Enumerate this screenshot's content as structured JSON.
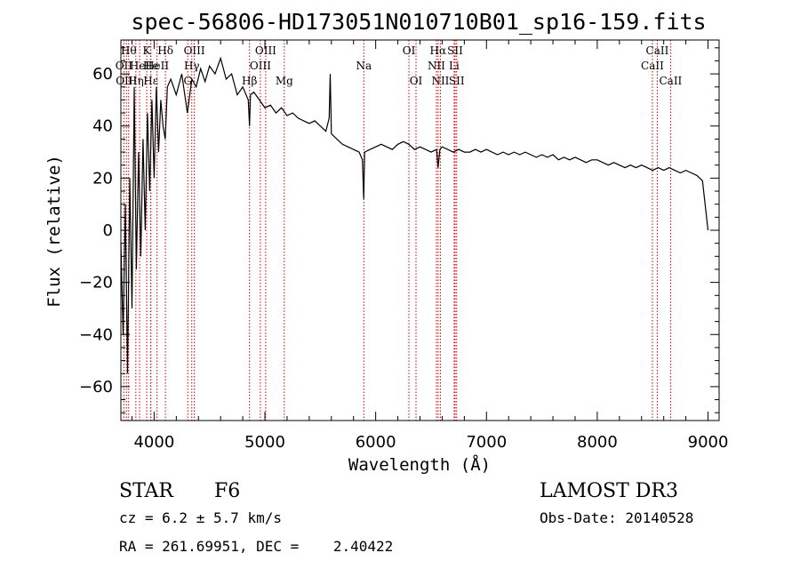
{
  "chart_data": {
    "type": "line",
    "title": "spec-56806-HD173051N010710B01_sp16-159.fits",
    "xlabel": "Wavelength (Å)",
    "ylabel": "Flux (relative)",
    "xlim": [
      3700,
      9100
    ],
    "ylim": [
      -73,
      73
    ],
    "x_ticks": [
      4000,
      5000,
      6000,
      7000,
      8000,
      9000
    ],
    "y_ticks": [
      -60,
      -40,
      -20,
      0,
      20,
      40,
      60
    ],
    "x_tick_labels": [
      "4000",
      "5000",
      "6000",
      "7000",
      "8000",
      "9000"
    ],
    "y_tick_labels": [
      "−60",
      "−40",
      "−20",
      "0",
      "20",
      "40",
      "60"
    ],
    "series": [
      {
        "name": "flux",
        "x": [
          3700,
          3720,
          3740,
          3760,
          3780,
          3800,
          3820,
          3840,
          3860,
          3880,
          3900,
          3920,
          3940,
          3960,
          3980,
          4000,
          4020,
          4040,
          4060,
          4080,
          4100,
          4120,
          4150,
          4200,
          4250,
          4300,
          4340,
          4380,
          4420,
          4460,
          4500,
          4550,
          4600,
          4650,
          4700,
          4750,
          4800,
          4850,
          4861,
          4870,
          4900,
          4950,
          5000,
          5050,
          5100,
          5150,
          5200,
          5250,
          5300,
          5350,
          5400,
          5450,
          5500,
          5550,
          5580,
          5590,
          5600,
          5650,
          5700,
          5750,
          5800,
          5850,
          5880,
          5892,
          5900,
          5950,
          6000,
          6050,
          6100,
          6150,
          6200,
          6250,
          6300,
          6350,
          6400,
          6450,
          6500,
          6550,
          6563,
          6580,
          6600,
          6650,
          6700,
          6750,
          6800,
          6850,
          6900,
          6950,
          7000,
          7050,
          7100,
          7150,
          7200,
          7250,
          7300,
          7350,
          7400,
          7450,
          7500,
          7550,
          7600,
          7650,
          7700,
          7750,
          7800,
          7850,
          7900,
          7950,
          8000,
          8050,
          8100,
          8150,
          8200,
          8250,
          8300,
          8350,
          8400,
          8450,
          8500,
          8550,
          8600,
          8650,
          8700,
          8750,
          8800,
          8850,
          8900,
          8950,
          9000
        ],
        "y": [
          -5,
          -40,
          10,
          -55,
          20,
          -30,
          55,
          -15,
          30,
          -10,
          35,
          0,
          45,
          15,
          50,
          20,
          55,
          30,
          50,
          40,
          35,
          55,
          58,
          52,
          60,
          45,
          58,
          55,
          62,
          57,
          63,
          60,
          66,
          58,
          60,
          52,
          55,
          50,
          40,
          52,
          53,
          50,
          47,
          48,
          45,
          47,
          44,
          45,
          43,
          42,
          41,
          42,
          40,
          38,
          43,
          60,
          37,
          35,
          33,
          32,
          31,
          30,
          27,
          12,
          30,
          31,
          32,
          33,
          32,
          31,
          33,
          34,
          33,
          31,
          32,
          31,
          30,
          31,
          24,
          31,
          32,
          31,
          30,
          31,
          30,
          30,
          31,
          30,
          31,
          30,
          29,
          30,
          29,
          30,
          29,
          30,
          29,
          28,
          29,
          28,
          29,
          27,
          28,
          27,
          28,
          27,
          26,
          27,
          27,
          26,
          25,
          26,
          25,
          24,
          25,
          24,
          25,
          24,
          23,
          24,
          23,
          24,
          23,
          22,
          23,
          22,
          21,
          19,
          0
        ]
      }
    ],
    "spectral_lines": [
      {
        "wl": 3727,
        "label": "OII",
        "row": 2
      },
      {
        "wl": 3750,
        "label": "OIII",
        "row": 3
      },
      {
        "wl": 3770,
        "label": "Hθ",
        "row": 1
      },
      {
        "wl": 3835,
        "label": "Hη",
        "row": 3
      },
      {
        "wl": 3869,
        "label": "HeI",
        "row": 2
      },
      {
        "wl": 3933,
        "label": "K",
        "row": 1
      },
      {
        "wl": 3970,
        "label": "Hε",
        "row": 3
      },
      {
        "wl": 3970,
        "label": "He",
        "row": 2
      },
      {
        "wl": 4026,
        "label": "HeII",
        "row": 2
      },
      {
        "wl": 4102,
        "label": "Hδ",
        "row": 1
      },
      {
        "wl": 4304,
        "label": "G",
        "row": 3
      },
      {
        "wl": 4340,
        "label": "Hγ",
        "row": 2
      },
      {
        "wl": 4363,
        "label": "OIII",
        "row": 1
      },
      {
        "wl": 4861,
        "label": "Hβ",
        "row": 3
      },
      {
        "wl": 4959,
        "label": "OIII",
        "row": 2
      },
      {
        "wl": 5007,
        "label": "OIII",
        "row": 1
      },
      {
        "wl": 5175,
        "label": "Mg",
        "row": 3
      },
      {
        "wl": 5893,
        "label": "Na",
        "row": 2
      },
      {
        "wl": 6300,
        "label": "OI",
        "row": 1
      },
      {
        "wl": 6364,
        "label": "OI",
        "row": 3
      },
      {
        "wl": 6548,
        "label": "NII",
        "row": 2
      },
      {
        "wl": 6563,
        "label": "Hα",
        "row": 1
      },
      {
        "wl": 6584,
        "label": "NII",
        "row": 3
      },
      {
        "wl": 6708,
        "label": "Li",
        "row": 2
      },
      {
        "wl": 6717,
        "label": "SII",
        "row": 1
      },
      {
        "wl": 6731,
        "label": "SII",
        "row": 3
      },
      {
        "wl": 8498,
        "label": "CaII",
        "row": 2
      },
      {
        "wl": 8542,
        "label": "CaII",
        "row": 1
      },
      {
        "wl": 8662,
        "label": "CaII",
        "row": 3
      }
    ]
  },
  "info": {
    "object_type": "STAR",
    "subclass": "F6",
    "redshift": "cz = 6.2 ± 5.7 km/s",
    "coords": "RA = 261.69951, DEC =    2.40422",
    "survey": "LAMOST DR3",
    "obs_date": "Obs-Date: 20140528"
  },
  "colors": {
    "line_marker": "#cc0000",
    "spectrum": "#000000"
  }
}
